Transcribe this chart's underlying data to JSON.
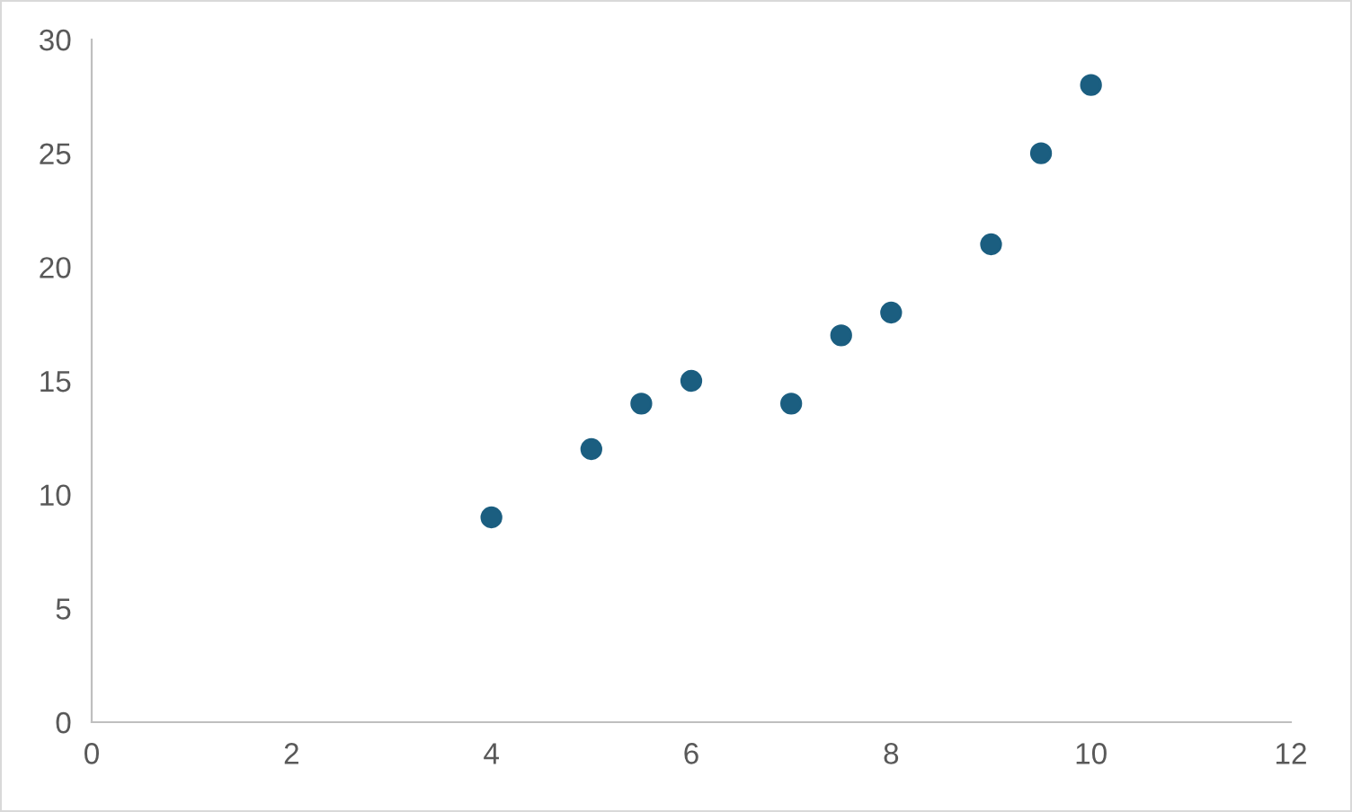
{
  "chart_data": {
    "type": "scatter",
    "x": [
      4,
      5,
      5.5,
      6,
      7,
      7.5,
      8,
      9,
      9.5,
      10
    ],
    "series": [
      {
        "color": "#1b5e80",
        "values": [
          9,
          12,
          14,
          15,
          14,
          17,
          18,
          21,
          25,
          28
        ]
      }
    ],
    "xlim": [
      0,
      12
    ],
    "xticks": [
      0,
      2,
      4,
      6,
      8,
      10,
      12
    ],
    "ylim": [
      0,
      30
    ],
    "yticks": [
      0,
      5,
      10,
      15,
      20,
      25,
      30
    ],
    "marker": "circle",
    "grid": false,
    "legend": false
  }
}
